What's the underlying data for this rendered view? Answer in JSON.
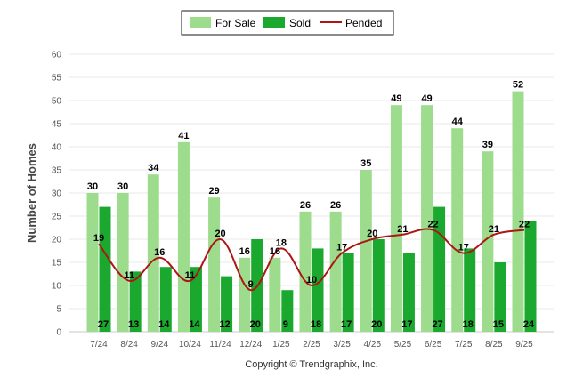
{
  "chart_data": {
    "type": "bar",
    "title": "",
    "xlabel": "",
    "ylabel": "Number of Homes",
    "ylim": [
      0,
      60
    ],
    "yticks": [
      0,
      5,
      10,
      15,
      20,
      25,
      30,
      35,
      40,
      45,
      50,
      55,
      60
    ],
    "grid": true,
    "legend_position": "top-center",
    "categories": [
      "7/24",
      "8/24",
      "9/24",
      "10/24",
      "11/24",
      "12/24",
      "1/25",
      "2/25",
      "3/25",
      "4/25",
      "5/25",
      "6/25",
      "7/25",
      "8/25",
      "9/25"
    ],
    "series": [
      {
        "name": "For Sale",
        "kind": "bar",
        "color": "#9ddc8c",
        "values": [
          30,
          30,
          34,
          41,
          29,
          16,
          16,
          26,
          26,
          35,
          49,
          49,
          44,
          39,
          52
        ]
      },
      {
        "name": "Sold",
        "kind": "bar",
        "color": "#1aa82e",
        "values": [
          27,
          13,
          14,
          14,
          12,
          20,
          9,
          18,
          17,
          20,
          17,
          27,
          18,
          15,
          24
        ]
      },
      {
        "name": "Pended",
        "kind": "line",
        "color": "#b01515",
        "values": [
          19,
          11,
          16,
          11,
          20,
          9,
          18,
          10,
          17,
          20,
          21,
          22,
          17,
          21,
          22
        ]
      }
    ],
    "credit": "Copyright © Trendgraphix, Inc."
  }
}
